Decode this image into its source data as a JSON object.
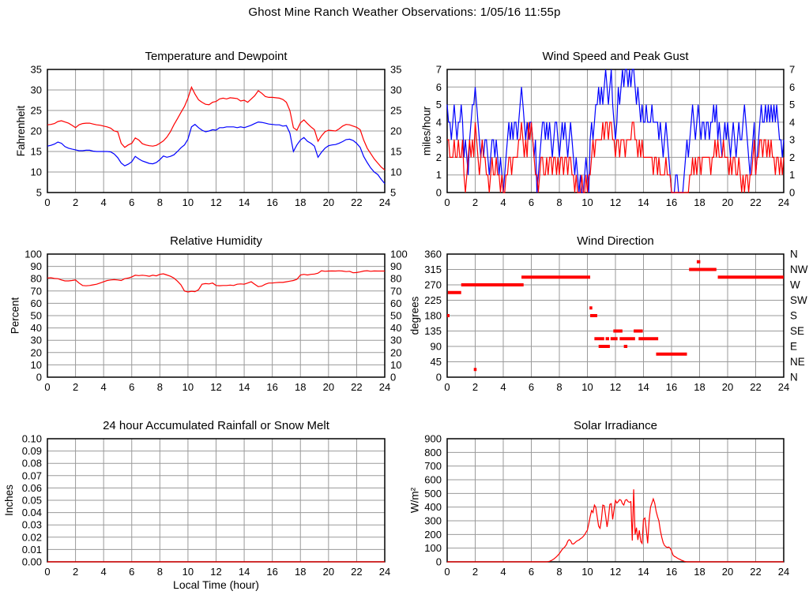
{
  "title": "Ghost Mine Ranch Weather Observations: 1/05/16 11:55p",
  "colors": {
    "red": "#ff0000",
    "blue": "#0000ff",
    "grid": "#9a9a9a",
    "frame": "#000000",
    "background": "#ffffff",
    "text": "#000000"
  },
  "x_axis": {
    "min": 0,
    "max": 24,
    "tick": 2
  },
  "chart_data": [
    {
      "id": "temperature-dewpoint",
      "type": "line",
      "title": "Temperature and Dewpoint",
      "ylabel": "Fahrenheit",
      "ymin": 5,
      "ymax": 35,
      "ytick": 5,
      "mirror": true,
      "xlim": [
        0,
        24
      ],
      "grid": true,
      "series": [
        {
          "name": "temperature",
          "color": "#ff0000",
          "x0": 0,
          "dx": 0.25,
          "values": [
            21.5,
            21.6,
            21.8,
            22.3,
            22.5,
            22.2,
            21.9,
            21.4,
            20.8,
            21.5,
            21.8,
            21.9,
            21.9,
            21.7,
            21.5,
            21.4,
            21.2,
            21.0,
            20.7,
            20.0,
            19.8,
            17.0,
            16.0,
            16.6,
            17.0,
            18.3,
            17.8,
            16.9,
            16.6,
            16.4,
            16.3,
            16.5,
            17.0,
            17.6,
            18.5,
            19.8,
            21.5,
            23.0,
            24.5,
            26.0,
            28.0,
            30.7,
            29.0,
            27.6,
            27.0,
            26.5,
            26.4,
            27.0,
            27.2,
            27.8,
            28.0,
            27.8,
            28.1,
            28.0,
            27.9,
            27.3,
            27.5,
            27.0,
            27.8,
            28.6,
            29.8,
            29.2,
            28.4,
            28.2,
            28.2,
            28.1,
            28.0,
            27.7,
            27.0,
            25.0,
            20.8,
            20.2,
            22.0,
            22.7,
            21.8,
            21.0,
            20.3,
            17.5,
            18.8,
            19.8,
            20.2,
            20.1,
            20.0,
            20.5,
            21.2,
            21.6,
            21.5,
            21.2,
            20.9,
            20.3,
            17.8,
            15.8,
            14.5,
            13.2,
            12.2,
            11.2,
            10.5
          ]
        },
        {
          "name": "dewpoint",
          "color": "#0000ff",
          "x0": 0,
          "dx": 0.25,
          "values": [
            16.3,
            16.5,
            16.8,
            17.3,
            17.0,
            16.2,
            15.8,
            15.6,
            15.4,
            15.2,
            15.2,
            15.3,
            15.3,
            15.1,
            15.0,
            15.0,
            15.0,
            15.0,
            14.9,
            14.4,
            13.5,
            12.2,
            11.5,
            11.9,
            12.5,
            13.8,
            13.2,
            12.7,
            12.4,
            12.1,
            12.0,
            12.3,
            13.0,
            13.9,
            13.6,
            13.8,
            14.2,
            15.0,
            15.9,
            16.6,
            18.0,
            21.0,
            21.6,
            20.8,
            20.2,
            19.8,
            20.0,
            20.3,
            20.2,
            20.8,
            20.8,
            21.0,
            21.0,
            21.0,
            20.8,
            21.0,
            20.8,
            21.1,
            21.4,
            21.8,
            22.2,
            22.1,
            21.9,
            21.7,
            21.6,
            21.5,
            21.5,
            21.2,
            21.3,
            19.5,
            15.0,
            16.6,
            17.8,
            18.4,
            17.5,
            17.0,
            16.3,
            13.6,
            14.8,
            15.8,
            16.4,
            16.6,
            16.7,
            17.0,
            17.4,
            17.9,
            18.0,
            17.7,
            17.0,
            16.0,
            13.8,
            12.3,
            11.0,
            10.0,
            9.4,
            8.2,
            7.2
          ]
        }
      ]
    },
    {
      "id": "wind-speed-gust",
      "type": "line",
      "title": "Wind Speed and Peak Gust",
      "ylabel": "miles/hour",
      "ymin": 0,
      "ymax": 7,
      "ytick": 1,
      "mirror": true,
      "xlim": [
        0,
        24
      ],
      "grid": true,
      "series": [
        {
          "name": "peak-gust",
          "color": "#0000ff",
          "x0": 0,
          "dx": 0.1,
          "digits": [
            "5443454344",
            "5423213455",
            "6543232332",
            "1233232121",
            "0123434344",
            "3456543434",
            "4323012344",
            "3434323443",
            "2343432343",
            "2121010012",
            "1034345565",
            "6567656754",
            "3465676776",
            "7677656545",
            "4454445444",
            "4343234321",
            "0001100001",
            "2323454345",
            "4344344344",
            "5453432343",
            "4323432343",
            "3454321234",
            "1234544545",
            "4545454332",
            "3"
          ]
        },
        {
          "name": "wind-speed",
          "color": "#ff0000",
          "x0": 0,
          "dx": 0.1,
          "digits": [
            "3322232232",
            "2310123232",
            "4321232211",
            "0121121101",
            "0011221222",
            "2334323243",
            "4321101221",
            "1212212212",
            "1221221221",
            "1010001001",
            "0112323333",
            "3434434433",
            "2332333233",
            "3344332323",
            "2222222122",
            "1211112111",
            "0000000000",
            "0001121212",
            "2122222212",
            "2323222322",
            "2121221121",
            "0101101123",
            "1223323323",
            "2322122121",
            "2"
          ]
        }
      ]
    },
    {
      "id": "relative-humidity",
      "type": "line",
      "title": "Relative Humidity",
      "ylabel": "Percent",
      "ymin": 0,
      "ymax": 100,
      "ytick": 10,
      "mirror": true,
      "xlim": [
        0,
        24
      ],
      "grid": true,
      "series": [
        {
          "name": "relative-humidity",
          "color": "#ff0000",
          "x0": 0,
          "dx": 0.25,
          "values": [
            80.5,
            80.8,
            80.2,
            80.0,
            79.0,
            78.2,
            78.2,
            78.5,
            79.0,
            76.5,
            74.5,
            74.2,
            74.5,
            75.0,
            75.5,
            76.5,
            77.5,
            78.5,
            79.0,
            79.2,
            79.0,
            78.5,
            80.0,
            80.5,
            81.5,
            82.8,
            82.5,
            82.8,
            82.5,
            82.0,
            82.8,
            82.3,
            83.5,
            84.0,
            83.0,
            82.0,
            80.5,
            78.0,
            75.0,
            70.0,
            69.2,
            69.8,
            69.5,
            71.0,
            75.5,
            76.0,
            75.8,
            76.5,
            74.5,
            74.3,
            74.5,
            74.5,
            74.8,
            74.5,
            75.5,
            75.8,
            75.5,
            76.5,
            77.5,
            75.5,
            73.5,
            74.0,
            75.5,
            76.5,
            76.5,
            76.8,
            77.0,
            77.0,
            77.5,
            78.0,
            78.5,
            79.5,
            83.0,
            83.5,
            83.0,
            83.5,
            83.8,
            84.5,
            86.5,
            86.0,
            86.2,
            86.3,
            86.2,
            86.4,
            86.2,
            85.8,
            86.0,
            84.8,
            85.0,
            85.5,
            86.2,
            86.5,
            86.0,
            86.3,
            86.2,
            86.2,
            86.2
          ]
        }
      ]
    },
    {
      "id": "wind-direction",
      "type": "segments",
      "title": "Wind Direction",
      "ylabel": "degrees",
      "ymin": 0,
      "ymax": 360,
      "ytick": 45,
      "mirror": false,
      "right_labels": [
        "N",
        "NW",
        "W",
        "SW",
        "S",
        "SE",
        "E",
        "NE",
        "N"
      ],
      "xlim": [
        0,
        24
      ],
      "grid": true,
      "series": [
        {
          "name": "wind-direction",
          "color": "#ff0000",
          "segments": [
            [
              0.0,
              0.15,
              180
            ],
            [
              0.05,
              1.0,
              247.5
            ],
            [
              1.0,
              5.45,
              270
            ],
            [
              1.9,
              2.1,
              22.5
            ],
            [
              5.3,
              10.2,
              292.5
            ],
            [
              10.15,
              10.35,
              202.5
            ],
            [
              10.2,
              10.7,
              180
            ],
            [
              10.5,
              11.2,
              112.5
            ],
            [
              10.8,
              11.6,
              90
            ],
            [
              11.3,
              11.55,
              112.5
            ],
            [
              11.65,
              12.15,
              112.5
            ],
            [
              11.85,
              12.5,
              135
            ],
            [
              12.3,
              13.4,
              112.5
            ],
            [
              12.6,
              12.85,
              90
            ],
            [
              13.3,
              13.95,
              135
            ],
            [
              13.65,
              15.05,
              112.5
            ],
            [
              14.9,
              17.1,
              67.5
            ],
            [
              17.25,
              19.2,
              315
            ],
            [
              17.8,
              18.05,
              337.5
            ],
            [
              19.3,
              24.0,
              292.5
            ]
          ]
        }
      ]
    },
    {
      "id": "rainfall",
      "type": "line",
      "title": "24 hour Accumulated Rainfall or Snow Melt",
      "ylabel": "Inches",
      "xlabel": "Local Time (hour)",
      "ymin": 0,
      "ymax": 0.1,
      "ytick": 0.01,
      "ydecimals": 2,
      "mirror": false,
      "xlim": [
        0,
        24
      ],
      "grid": true,
      "series": [
        {
          "name": "rainfall",
          "color": "#ff0000",
          "x0": 0,
          "dx": 24,
          "values": [
            0,
            0
          ]
        }
      ]
    },
    {
      "id": "solar-irradiance",
      "type": "line",
      "title": "Solar Irradiance",
      "ylabel": "W/m²",
      "ymin": 0,
      "ymax": 900,
      "ytick": 100,
      "mirror": false,
      "xlim": [
        0,
        24
      ],
      "grid": true,
      "series": [
        {
          "name": "solar-irradiance",
          "color": "#ff0000",
          "x0": 7.0,
          "dx": 0.1,
          "baseline": true,
          "values": [
            0,
            0,
            2,
            4,
            8,
            14,
            20,
            28,
            38,
            48,
            60,
            75,
            90,
            100,
            110,
            125,
            150,
            162,
            155,
            132,
            130,
            138,
            148,
            155,
            160,
            168,
            175,
            185,
            198,
            215,
            232,
            280,
            330,
            375,
            360,
            415,
            400,
            330,
            260,
            245,
            310,
            415,
            410,
            335,
            255,
            320,
            420,
            425,
            310,
            380,
            450,
            430,
            440,
            455,
            450,
            425,
            415,
            450,
            455,
            440,
            435,
            440,
            155,
            530,
            200,
            250,
            160,
            230,
            150,
            135,
            310,
            320,
            240,
            135,
            300,
            400,
            430,
            460,
            430,
            370,
            330,
            300,
            230,
            180,
            140,
            120,
            110,
            105,
            108,
            100,
            80,
            50,
            40,
            35,
            28,
            22,
            18,
            12,
            8,
            4,
            2,
            0
          ]
        }
      ]
    }
  ]
}
